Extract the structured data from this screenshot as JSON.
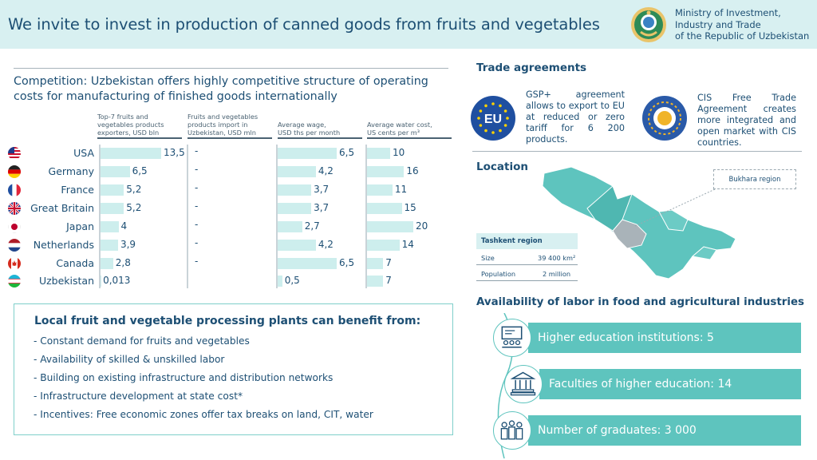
{
  "header": {
    "title": "We invite to invest in production of canned goods from fruits and vegetables",
    "ministry_lines": [
      "Ministry of Investment,",
      "Industry and Trade",
      "of the Republic of Uzbekistan"
    ]
  },
  "competition": {
    "title": "Competition: Uzbekistan offers highly competitive structure of operating costs for manufacturing of finished goods internationally",
    "columns": [
      {
        "lines": [
          "Top-7 fruits and",
          "vegetables products",
          "exporters, USD bln"
        ]
      },
      {
        "lines": [
          "Fruits and vegetables",
          "products import in",
          "Uzbekistan, USD mln"
        ]
      },
      {
        "lines": [
          "Average wage,",
          "USD ths per month"
        ]
      },
      {
        "lines": [
          "Average water cost,",
          "US cents per m³"
        ]
      }
    ],
    "rows": [
      {
        "country": "USA",
        "flag": "us-flag",
        "exports": "13,5",
        "exports_num": 13.5,
        "import": "-",
        "wage": "6,5",
        "wage_num": 6.5,
        "water": "10",
        "water_num": 10
      },
      {
        "country": "Germany",
        "flag": "de-flag",
        "exports": "6,5",
        "exports_num": 6.5,
        "import": "-",
        "wage": "4,2",
        "wage_num": 4.2,
        "water": "16",
        "water_num": 16
      },
      {
        "country": "France",
        "flag": "fr-flag",
        "exports": "5,2",
        "exports_num": 5.2,
        "import": "-",
        "wage": "3,7",
        "wage_num": 3.7,
        "water": "11",
        "water_num": 11
      },
      {
        "country": "Great Britain",
        "flag": "gb-flag",
        "exports": "5,2",
        "exports_num": 5.2,
        "import": "-",
        "wage": "3,7",
        "wage_num": 3.7,
        "water": "15",
        "water_num": 15
      },
      {
        "country": "Japan",
        "flag": "jp-flag",
        "exports": "4",
        "exports_num": 4,
        "import": "-",
        "wage": "2,7",
        "wage_num": 2.7,
        "water": "20",
        "water_num": 20
      },
      {
        "country": "Netherlands",
        "flag": "nl-flag",
        "exports": "3,9",
        "exports_num": 3.9,
        "import": "-",
        "wage": "4,2",
        "wage_num": 4.2,
        "water": "14",
        "water_num": 14
      },
      {
        "country": "Canada",
        "flag": "ca-flag",
        "exports": "2,8",
        "exports_num": 2.8,
        "import": "-",
        "wage": "6,5",
        "wage_num": 6.5,
        "water": "7",
        "water_num": 7
      },
      {
        "country": "Uzbekistan",
        "flag": "uz-flag",
        "exports": "0,013",
        "exports_num": 0.013,
        "import": "",
        "wage": "0,5",
        "wage_num": 0.5,
        "water": "7",
        "water_num": 7
      }
    ]
  },
  "benefits": {
    "title": "Local fruit and vegetable processing plants can benefit from:",
    "items": [
      "- Constant demand for fruits and vegetables",
      "- Availability of skilled & unskilled labor",
      "- Building on existing infrastructure and distribution networks",
      "- Infrastructure development at state cost*",
      "- Incentives: Free economic  zones offer tax breaks on land, CIT, water"
    ]
  },
  "trade": {
    "title": "Trade agreements",
    "eu_label": "EU",
    "gsp_text": "GSP+ agreement allows to export to EU at reduced or zero tariff for 6 200 products.",
    "cis_text": "CIS Free Trade Agreement creates more integrated and open market with CIS countries."
  },
  "location": {
    "title": "Location",
    "bukhara": "Bukhara region",
    "table": {
      "header": "Tashkent region",
      "rows": [
        {
          "label": "Size",
          "value": "39 400 km²"
        },
        {
          "label": "Population",
          "value": "2 million"
        }
      ]
    }
  },
  "labor": {
    "title": "Availability of labor in food and agricultural industries",
    "items": [
      {
        "label": "Higher education institutions: 5",
        "icon": "classroom-icon"
      },
      {
        "label": "Faculties of higher education: 14",
        "icon": "institution-icon"
      },
      {
        "label": "Number of graduates: 3 000",
        "icon": "graduates-icon"
      }
    ]
  },
  "colors": {
    "accent": "#5ec4be",
    "light": "#cdeeed",
    "text": "#1d4f74",
    "header_bg": "#d8f0f1"
  }
}
